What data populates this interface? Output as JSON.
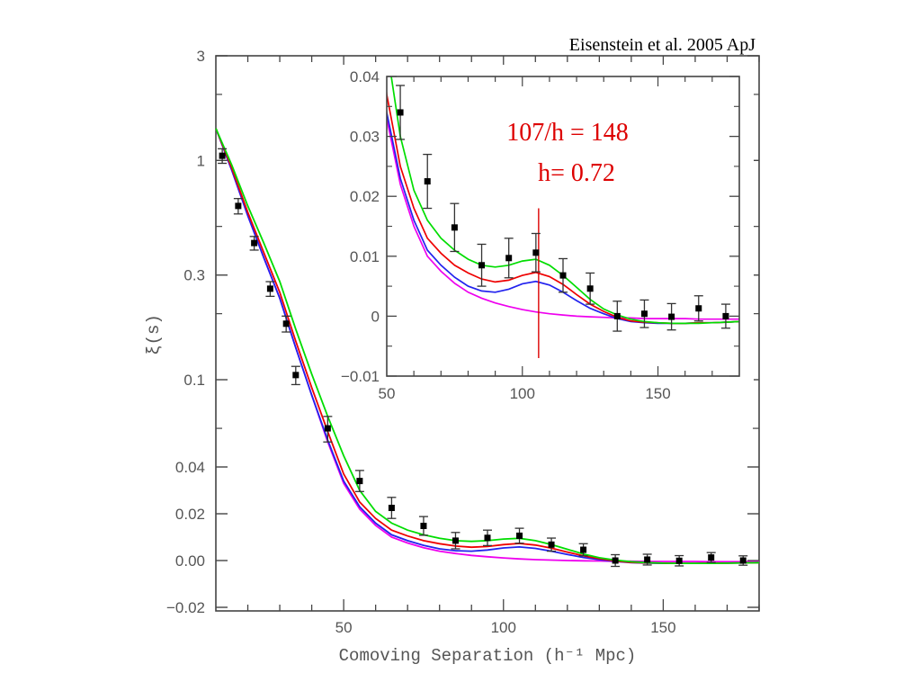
{
  "citation": "Eisenstein et al. 2005  ApJ",
  "chart_data": [
    {
      "type": "line",
      "xlabel": "Comoving Separation (h⁻¹ Mpc)",
      "ylabel": "ξ(s)",
      "xlim": [
        10,
        180
      ],
      "x_ticks": [
        50,
        100,
        150
      ],
      "y_ticks": [
        {
          "value": 3,
          "label": "3"
        },
        {
          "value": 1,
          "label": "1"
        },
        {
          "value": 0.3,
          "label": "0.3"
        },
        {
          "value": 0.1,
          "label": "0.1"
        },
        {
          "value": 0.04,
          "label": "0.04"
        },
        {
          "value": 0.02,
          "label": "0.02"
        },
        {
          "value": 0.0,
          "label": "0.00"
        },
        {
          "value": -0.02,
          "label": "−0.02"
        }
      ],
      "y_scale": "hybrid: logarithmic above 0.04, linear below",
      "series": [
        {
          "color": "#00dd00",
          "x": [
            10,
            15,
            20,
            25,
            30,
            35,
            40,
            45,
            50,
            55,
            60,
            65,
            70,
            75,
            80,
            85,
            90,
            95,
            100,
            105,
            110,
            115,
            120,
            125,
            130,
            135,
            140,
            145,
            150,
            155,
            160,
            165,
            170,
            175,
            180
          ],
          "y": [
            1.4,
            0.95,
            0.62,
            0.42,
            0.28,
            0.17,
            0.106,
            0.068,
            0.045,
            0.03,
            0.021,
            0.016,
            0.013,
            0.011,
            0.0095,
            0.0085,
            0.0082,
            0.0085,
            0.0092,
            0.0095,
            0.0085,
            0.0068,
            0.0048,
            0.0028,
            0.0012,
            0.0002,
            -0.0005,
            -0.0009,
            -0.0011,
            -0.0012,
            -0.0012,
            -0.0012,
            -0.0011,
            -0.001,
            -0.0009
          ]
        },
        {
          "color": "#ee0000",
          "x": [
            10,
            15,
            20,
            25,
            30,
            35,
            40,
            45,
            50,
            55,
            60,
            65,
            70,
            75,
            80,
            85,
            90,
            95,
            100,
            105,
            110,
            115,
            120,
            125,
            130,
            135,
            140,
            145,
            150,
            155,
            160,
            165,
            170,
            175,
            180
          ],
          "y": [
            1.4,
            0.92,
            0.58,
            0.38,
            0.25,
            0.15,
            0.092,
            0.058,
            0.037,
            0.025,
            0.018,
            0.013,
            0.0105,
            0.0085,
            0.0072,
            0.0062,
            0.0057,
            0.006,
            0.0068,
            0.0073,
            0.0066,
            0.0053,
            0.0036,
            0.002,
            0.0008,
            -0.0002,
            -0.0008,
            -0.001,
            -0.0011,
            -0.0012,
            -0.0012,
            -0.0011,
            -0.0011,
            -0.001,
            -0.0009
          ]
        },
        {
          "color": "#2222ee",
          "x": [
            10,
            15,
            20,
            25,
            30,
            35,
            40,
            45,
            50,
            55,
            60,
            65,
            70,
            75,
            80,
            85,
            90,
            95,
            100,
            105,
            110,
            115,
            120,
            125,
            130,
            135,
            140,
            145,
            150,
            155,
            160,
            165,
            170,
            175,
            180
          ],
          "y": [
            1.4,
            0.9,
            0.56,
            0.36,
            0.235,
            0.14,
            0.085,
            0.053,
            0.034,
            0.023,
            0.016,
            0.011,
            0.0085,
            0.0065,
            0.005,
            0.0042,
            0.004,
            0.0045,
            0.0054,
            0.0058,
            0.0052,
            0.004,
            0.0026,
            0.0013,
            0.0004,
            -0.0004,
            -0.0009,
            -0.0011,
            -0.0012,
            -0.0012,
            -0.0012,
            -0.0011,
            -0.0011,
            -0.001,
            -0.0009
          ]
        },
        {
          "color": "#ee00ee",
          "x": [
            10,
            15,
            20,
            25,
            30,
            35,
            40,
            45,
            50,
            55,
            60,
            65,
            70,
            75,
            80,
            85,
            90,
            95,
            100,
            105,
            110,
            115,
            120,
            125,
            130,
            135,
            140,
            145,
            150,
            155,
            160,
            165,
            170,
            175,
            180
          ],
          "y": [
            1.4,
            0.9,
            0.56,
            0.36,
            0.235,
            0.14,
            0.085,
            0.052,
            0.033,
            0.022,
            0.015,
            0.01,
            0.0075,
            0.0055,
            0.004,
            0.003,
            0.0022,
            0.0016,
            0.0011,
            0.0007,
            0.0004,
            0.0002,
            0.0,
            -0.0001,
            -0.0002,
            -0.0003,
            -0.0003,
            -0.0004,
            -0.0004,
            -0.0004,
            -0.0004,
            -0.0005,
            -0.0005,
            -0.0005,
            -0.0005
          ]
        }
      ],
      "points": [
        {
          "x": 12,
          "y": 1.05,
          "err": 0.08
        },
        {
          "x": 17,
          "y": 0.62,
          "err": 0.05
        },
        {
          "x": 22,
          "y": 0.42,
          "err": 0.03
        },
        {
          "x": 27,
          "y": 0.26,
          "err": 0.02
        },
        {
          "x": 32,
          "y": 0.18,
          "err": 0.015
        },
        {
          "x": 35,
          "y": 0.105,
          "err": 0.01
        },
        {
          "x": 45,
          "y": 0.06,
          "err": 0.008
        },
        {
          "x": 55,
          "y": 0.034,
          "err": 0.0045
        },
        {
          "x": 65,
          "y": 0.0225,
          "err": 0.0045
        },
        {
          "x": 75,
          "y": 0.0148,
          "err": 0.004
        },
        {
          "x": 85,
          "y": 0.0085,
          "err": 0.0035
        },
        {
          "x": 95,
          "y": 0.0097,
          "err": 0.0033
        },
        {
          "x": 105,
          "y": 0.0106,
          "err": 0.0032
        },
        {
          "x": 115,
          "y": 0.0068,
          "err": 0.0028
        },
        {
          "x": 125,
          "y": 0.0046,
          "err": 0.0026
        },
        {
          "x": 135,
          "y": 0.0,
          "err": 0.0025
        },
        {
          "x": 145,
          "y": 0.0004,
          "err": 0.0023
        },
        {
          "x": 155,
          "y": -0.0001,
          "err": 0.0022
        },
        {
          "x": 165,
          "y": 0.0013,
          "err": 0.0021
        },
        {
          "x": 175,
          "y": 0.0,
          "err": 0.002
        }
      ]
    },
    {
      "type": "line",
      "role": "inset",
      "xlim": [
        50,
        180
      ],
      "ylim": [
        -0.01,
        0.04
      ],
      "x_ticks": [
        50,
        100,
        150
      ],
      "y_ticks": [
        {
          "value": 0.04,
          "label": "0.04"
        },
        {
          "value": 0.03,
          "label": "0.03"
        },
        {
          "value": 0.02,
          "label": "0.02"
        },
        {
          "value": 0.01,
          "label": "0.01"
        },
        {
          "value": 0.0,
          "label": "0"
        },
        {
          "value": -0.01,
          "label": "−0.01"
        }
      ],
      "annotation_lines": [
        "107/h = 148",
        "h= 0.72"
      ],
      "annotation_color": "#dd0000",
      "marker_line": {
        "x": 106,
        "y_from": -0.007,
        "y_to": 0.018,
        "color": "#dd0000"
      }
    }
  ]
}
